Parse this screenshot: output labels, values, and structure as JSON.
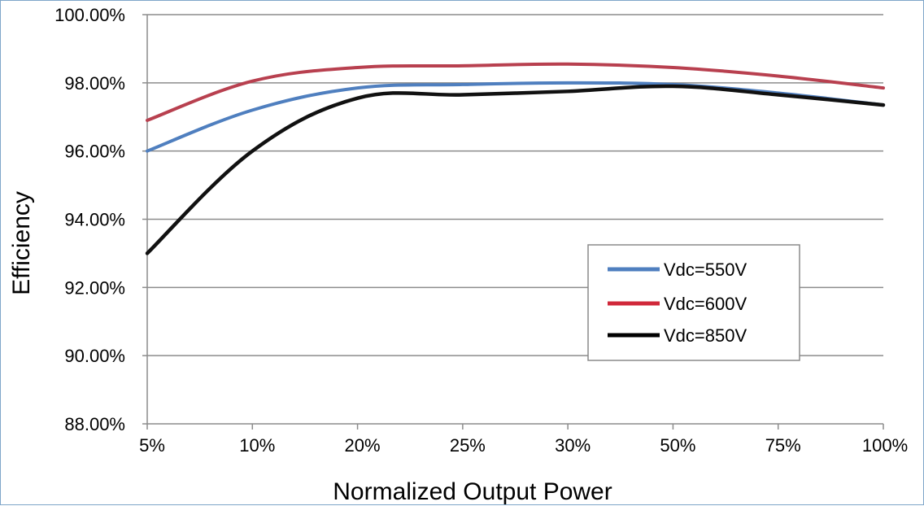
{
  "chart_data": {
    "type": "line",
    "title": "",
    "xlabel": "Normalized Output Power",
    "ylabel": "Efficiency",
    "categories": [
      "5%",
      "10%",
      "20%",
      "25%",
      "30%",
      "50%",
      "75%",
      "100%"
    ],
    "y_ticks": [
      "88.00%",
      "90.00%",
      "92.00%",
      "94.00%",
      "96.00%",
      "98.00%",
      "100.00%"
    ],
    "ylim": [
      88,
      100
    ],
    "grid": "horizontal",
    "legend_position": "center-right",
    "series": [
      {
        "name": "Vdc=550V",
        "color": "#4f7fbf",
        "values": [
          96.0,
          97.2,
          97.85,
          97.95,
          98.0,
          97.95,
          97.7,
          97.35
        ]
      },
      {
        "name": "Vdc=600V",
        "color": "#b8404f",
        "values": [
          96.9,
          98.05,
          98.45,
          98.5,
          98.55,
          98.45,
          98.2,
          97.85
        ]
      },
      {
        "name": "Vdc=850V",
        "color": "#111111",
        "values": [
          93.0,
          96.0,
          97.55,
          97.65,
          97.75,
          97.9,
          97.65,
          97.35
        ]
      }
    ],
    "legend_colors": {
      "Vdc=550V": "#4f7fbf",
      "Vdc=600V": "#d0283a",
      "Vdc=850V": "#000000"
    }
  }
}
